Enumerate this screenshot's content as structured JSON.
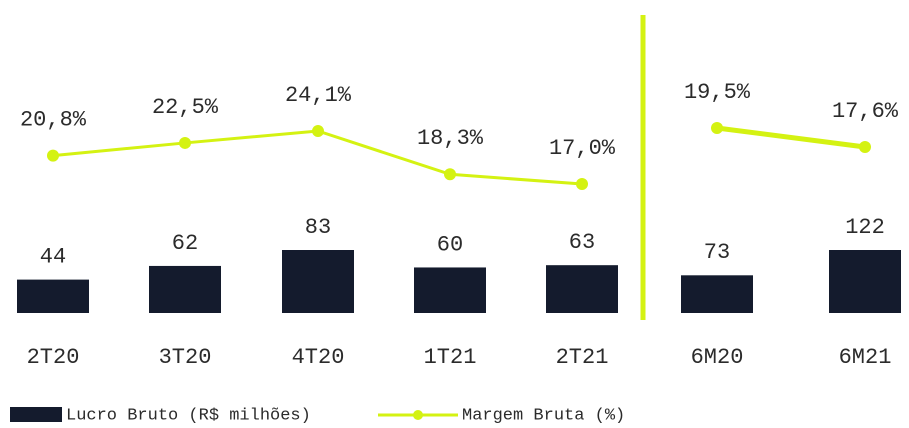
{
  "chart_data": [
    {
      "type": "bar",
      "categories": [
        "2T20",
        "3T20",
        "4T20",
        "1T21",
        "2T21"
      ],
      "series": [
        {
          "name": "Lucro Bruto (R$ milhões)",
          "color": "#141b2d",
          "values": [
            44,
            62,
            83,
            60,
            63
          ]
        },
        {
          "name": "Margem Bruta (%)",
          "type": "line",
          "color": "#d4f212",
          "values": [
            20.8,
            22.5,
            24.1,
            18.3,
            17.0
          ],
          "value_labels": [
            "20,8%",
            "22,5%",
            "24,1%",
            "18,3%",
            "17,0%"
          ]
        }
      ]
    },
    {
      "type": "bar",
      "categories": [
        "6M20",
        "6M21"
      ],
      "series": [
        {
          "name": "Lucro Bruto (R$ milhões)",
          "color": "#141b2d",
          "values": [
            73,
            122
          ]
        },
        {
          "name": "Margem Bruta (%)",
          "type": "line",
          "color": "#d4f212",
          "values": [
            19.5,
            17.6
          ],
          "value_labels": [
            "19,5%",
            "17,6%"
          ]
        }
      ]
    }
  ]
}
